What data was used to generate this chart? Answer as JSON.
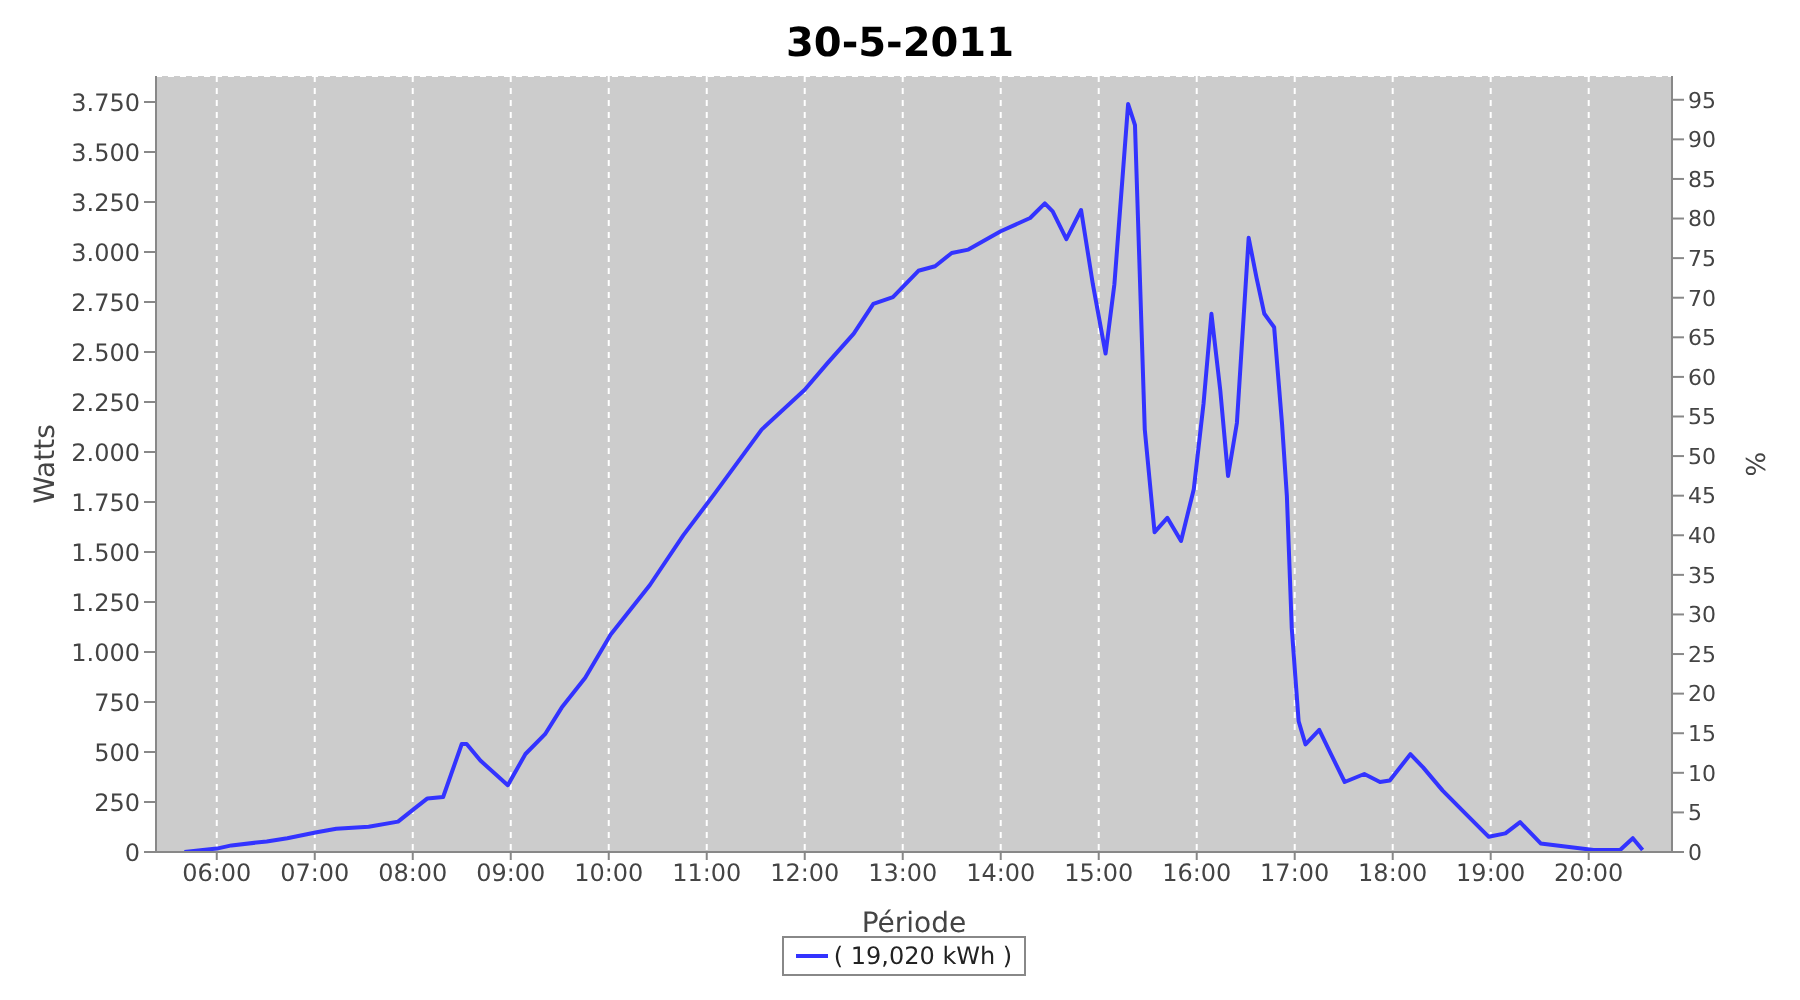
{
  "chart_data": {
    "type": "line",
    "title": "30-5-2011",
    "xlabel": "Période",
    "ylabel": "Watts",
    "y2label": "%",
    "x": [
      5.67,
      6.0,
      6.15,
      6.51,
      6.72,
      7.02,
      7.22,
      7.55,
      7.85,
      8.02,
      8.15,
      8.31,
      8.5,
      8.55,
      8.69,
      8.97,
      9.15,
      9.35,
      9.52,
      9.76,
      10.02,
      10.42,
      10.76,
      11.09,
      11.56,
      12.0,
      12.23,
      12.5,
      12.7,
      12.9,
      13.16,
      13.33,
      13.5,
      13.67,
      14.0,
      14.3,
      14.45,
      14.53,
      14.67,
      14.82,
      14.94,
      15.07,
      15.16,
      15.3,
      15.37,
      15.47,
      15.57,
      15.7,
      15.84,
      15.97,
      16.07,
      16.15,
      16.24,
      16.32,
      16.41,
      16.53,
      16.61,
      16.69,
      16.79,
      16.87,
      16.92,
      16.97,
      17.04,
      17.11,
      17.25,
      17.37,
      17.51,
      17.71,
      17.87,
      17.97,
      18.18,
      18.31,
      18.51,
      18.71,
      18.98,
      19.15,
      19.3,
      19.51,
      19.78,
      20.05,
      20.32,
      20.45,
      20.55
    ],
    "series": [
      {
        "name": "( 19,020 kWh )",
        "color": "#3333ff",
        "values": [
          0,
          17,
          33,
          53,
          69,
          99,
          116,
          126,
          152,
          218,
          268,
          275,
          540,
          540,
          457,
          334,
          490,
          589,
          722,
          871,
          1087,
          1335,
          1583,
          1798,
          2112,
          2311,
          2443,
          2592,
          2741,
          2774,
          2906,
          2929,
          2995,
          3012,
          3104,
          3170,
          3243,
          3203,
          3064,
          3210,
          2839,
          2492,
          2839,
          3740,
          3634,
          2112,
          1599,
          1671,
          1555,
          1814,
          2244,
          2691,
          2310,
          1880,
          2145,
          3071,
          2872,
          2691,
          2624,
          2145,
          1780,
          1118,
          654,
          538,
          611,
          489,
          350,
          390,
          350,
          357,
          489,
          423,
          307,
          208,
          76,
          93,
          149,
          43,
          26,
          10,
          10,
          69,
          10
        ]
      }
    ],
    "xlim": [
      5.38,
      20.85
    ],
    "xticks": [
      {
        "value": 6,
        "label": "06:00"
      },
      {
        "value": 7,
        "label": "07:00"
      },
      {
        "value": 8,
        "label": "08:00"
      },
      {
        "value": 9,
        "label": "09:00"
      },
      {
        "value": 10,
        "label": "10:00"
      },
      {
        "value": 11,
        "label": "11:00"
      },
      {
        "value": 12,
        "label": "12:00"
      },
      {
        "value": 13,
        "label": "13:00"
      },
      {
        "value": 14,
        "label": "14:00"
      },
      {
        "value": 15,
        "label": "15:00"
      },
      {
        "value": 16,
        "label": "16:00"
      },
      {
        "value": 17,
        "label": "17:00"
      },
      {
        "value": 18,
        "label": "18:00"
      },
      {
        "value": 19,
        "label": "19:00"
      },
      {
        "value": 20,
        "label": "20:00"
      }
    ],
    "ylim": [
      0,
      3880
    ],
    "yticks": [
      0,
      250,
      500,
      750,
      {
        "value": 1000,
        "label": "1.000"
      },
      {
        "value": 1250,
        "label": "1.250"
      },
      {
        "value": 1500,
        "label": "1.500"
      },
      {
        "value": 1750,
        "label": "1.750"
      },
      {
        "value": 2000,
        "label": "2.000"
      },
      {
        "value": 2250,
        "label": "2.250"
      },
      {
        "value": 2500,
        "label": "2.500"
      },
      {
        "value": 2750,
        "label": "2.750"
      },
      {
        "value": 3000,
        "label": "3.000"
      },
      {
        "value": 3250,
        "label": "3.250"
      },
      {
        "value": 3500,
        "label": "3.500"
      },
      {
        "value": 3750,
        "label": "3.750"
      }
    ],
    "y2lim": [
      0,
      98
    ],
    "y2ticks": [
      0,
      5,
      10,
      15,
      20,
      25,
      30,
      35,
      40,
      45,
      50,
      55,
      60,
      65,
      70,
      75,
      80,
      85,
      90,
      95
    ],
    "grid": true,
    "legend": "bottom",
    "marker": "none",
    "line_style": "solid"
  }
}
